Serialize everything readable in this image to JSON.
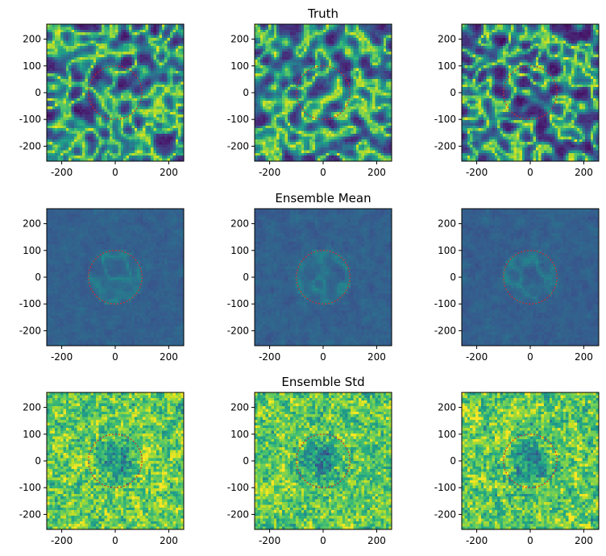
{
  "colormap": "viridis",
  "circle_color": "#d62728",
  "chart_data": [
    {
      "type": "heatmap",
      "row": 0,
      "col": 0,
      "title": "",
      "field": "truth",
      "seed": 11,
      "xlim": [
        -256,
        256
      ],
      "ylim": [
        -256,
        256
      ],
      "xticks": [
        "-200",
        "0",
        "200"
      ],
      "yticks": [
        "200",
        "100",
        "0",
        "-100",
        "-200"
      ],
      "circle": {
        "cx": 0,
        "cy": 0,
        "r": 100
      }
    },
    {
      "type": "heatmap",
      "row": 0,
      "col": 1,
      "title": "Truth",
      "field": "truth",
      "seed": 23,
      "xlim": [
        -256,
        256
      ],
      "ylim": [
        -256,
        256
      ],
      "xticks": [
        "-200",
        "0",
        "200"
      ],
      "yticks": [
        "200",
        "100",
        "0",
        "-100",
        "-200"
      ],
      "circle": {
        "cx": 0,
        "cy": 0,
        "r": 100
      }
    },
    {
      "type": "heatmap",
      "row": 0,
      "col": 2,
      "title": "",
      "field": "truth",
      "seed": 37,
      "xlim": [
        -256,
        256
      ],
      "ylim": [
        -256,
        256
      ],
      "xticks": [
        "-200",
        "0",
        "200"
      ],
      "yticks": [
        "200",
        "100",
        "0",
        "-100",
        "-200"
      ],
      "circle": {
        "cx": 0,
        "cy": 0,
        "r": 100
      }
    },
    {
      "type": "heatmap",
      "row": 1,
      "col": 0,
      "title": "",
      "field": "mean",
      "seed": 41,
      "xlim": [
        -256,
        256
      ],
      "ylim": [
        -256,
        256
      ],
      "xticks": [
        "-200",
        "0",
        "200"
      ],
      "yticks": [
        "200",
        "100",
        "0",
        "-100",
        "-200"
      ],
      "circle": {
        "cx": 0,
        "cy": 0,
        "r": 100
      }
    },
    {
      "type": "heatmap",
      "row": 1,
      "col": 1,
      "title": "Ensemble Mean",
      "field": "mean",
      "seed": 53,
      "xlim": [
        -256,
        256
      ],
      "ylim": [
        -256,
        256
      ],
      "xticks": [
        "-200",
        "0",
        "200"
      ],
      "yticks": [
        "200",
        "100",
        "0",
        "-100",
        "-200"
      ],
      "circle": {
        "cx": 0,
        "cy": 0,
        "r": 100
      }
    },
    {
      "type": "heatmap",
      "row": 1,
      "col": 2,
      "title": "",
      "field": "mean",
      "seed": 67,
      "xlim": [
        -256,
        256
      ],
      "ylim": [
        -256,
        256
      ],
      "xticks": [
        "-200",
        "0",
        "200"
      ],
      "yticks": [
        "200",
        "100",
        "0",
        "-100",
        "-200"
      ],
      "circle": {
        "cx": 0,
        "cy": 0,
        "r": 100
      }
    },
    {
      "type": "heatmap",
      "row": 2,
      "col": 0,
      "title": "",
      "field": "std",
      "seed": 71,
      "xlim": [
        -256,
        256
      ],
      "ylim": [
        -256,
        256
      ],
      "xticks": [
        "-200",
        "0",
        "200"
      ],
      "yticks": [
        "200",
        "100",
        "0",
        "-100",
        "-200"
      ],
      "circle": {
        "cx": 0,
        "cy": 0,
        "r": 100
      }
    },
    {
      "type": "heatmap",
      "row": 2,
      "col": 1,
      "title": "Ensemble Std",
      "field": "std",
      "seed": 83,
      "xlim": [
        -256,
        256
      ],
      "ylim": [
        -256,
        256
      ],
      "xticks": [
        "-200",
        "0",
        "200"
      ],
      "yticks": [
        "200",
        "100",
        "0",
        "-100",
        "-200"
      ],
      "circle": {
        "cx": 0,
        "cy": 0,
        "r": 100
      }
    },
    {
      "type": "heatmap",
      "row": 2,
      "col": 2,
      "title": "",
      "field": "std",
      "seed": 97,
      "xlim": [
        -256,
        256
      ],
      "ylim": [
        -256,
        256
      ],
      "xticks": [
        "-200",
        "0",
        "200"
      ],
      "yticks": [
        "200",
        "100",
        "0",
        "-100",
        "-200"
      ],
      "circle": {
        "cx": 0,
        "cy": 0,
        "r": 100
      }
    }
  ]
}
